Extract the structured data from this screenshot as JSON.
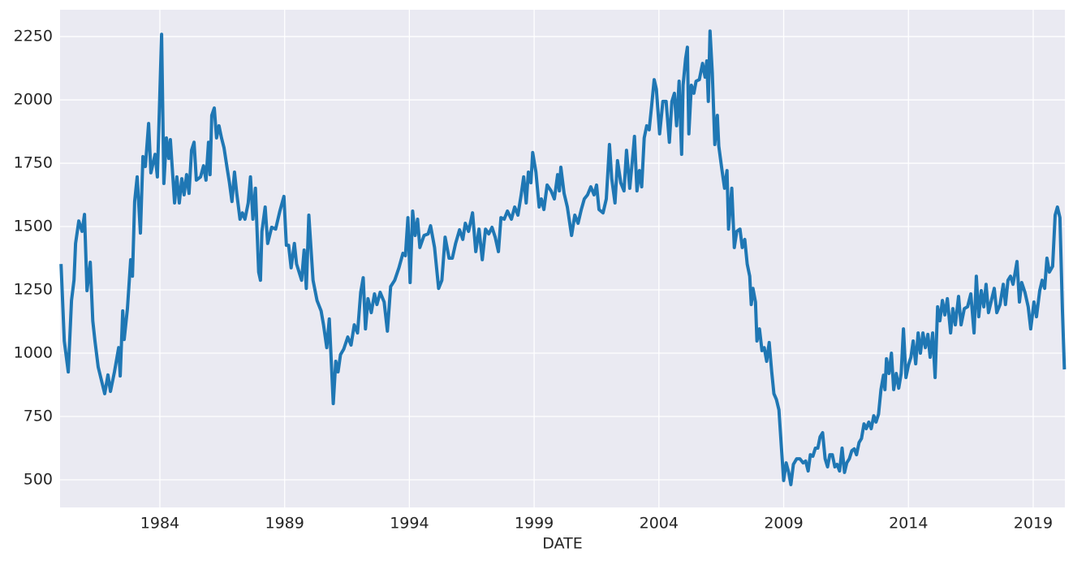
{
  "chart_data": {
    "type": "line",
    "xlabel": "DATE",
    "color": "#1f77b4",
    "grid": true,
    "xlim": [
      1980.0,
      2020.27
    ],
    "xticks": [
      1984,
      1989,
      1994,
      1999,
      2004,
      2009,
      2014,
      2019
    ],
    "ylim": [
      391,
      2356
    ],
    "yticks": [
      500,
      750,
      1000,
      1250,
      1500,
      1750,
      2000,
      2250
    ],
    "x": [
      1980.04,
      1980.17,
      1980.33,
      1980.46,
      1980.56,
      1980.62,
      1980.75,
      1980.88,
      1980.98,
      1981.08,
      1981.21,
      1981.31,
      1981.4,
      1981.53,
      1981.79,
      1981.92,
      1982.02,
      1982.18,
      1982.35,
      1982.41,
      1982.51,
      1982.57,
      1982.7,
      1982.83,
      1982.9,
      1982.99,
      1983.09,
      1983.22,
      1983.32,
      1983.42,
      1983.55,
      1983.64,
      1983.81,
      1983.9,
      1984.07,
      1984.16,
      1984.26,
      1984.36,
      1984.42,
      1984.59,
      1984.68,
      1984.78,
      1984.88,
      1984.97,
      1985.07,
      1985.17,
      1985.27,
      1985.37,
      1985.46,
      1985.63,
      1985.75,
      1985.85,
      1985.95,
      1986.01,
      1986.08,
      1986.18,
      1986.27,
      1986.37,
      1986.47,
      1986.57,
      1986.7,
      1986.79,
      1986.89,
      1986.99,
      1987.08,
      1987.21,
      1987.31,
      1987.41,
      1987.54,
      1987.63,
      1987.73,
      1987.83,
      1987.96,
      1988.03,
      1988.09,
      1988.22,
      1988.32,
      1988.48,
      1988.64,
      1988.81,
      1988.97,
      1989.07,
      1989.16,
      1989.26,
      1989.39,
      1989.48,
      1989.68,
      1989.78,
      1989.87,
      1989.97,
      1990.14,
      1990.3,
      1990.46,
      1990.56,
      1990.69,
      1990.79,
      1990.95,
      1991.05,
      1991.14,
      1991.24,
      1991.37,
      1991.53,
      1991.66,
      1991.79,
      1991.92,
      1992.05,
      1992.15,
      1992.24,
      1992.34,
      1992.47,
      1992.6,
      1992.7,
      1992.83,
      1992.99,
      1993.12,
      1993.25,
      1993.41,
      1993.58,
      1993.74,
      1993.84,
      1993.94,
      1994.03,
      1994.13,
      1994.23,
      1994.33,
      1994.42,
      1994.59,
      1994.75,
      1994.85,
      1995.01,
      1995.17,
      1995.3,
      1995.43,
      1995.59,
      1995.72,
      1995.85,
      1996.01,
      1996.14,
      1996.24,
      1996.37,
      1996.53,
      1996.66,
      1996.79,
      1996.92,
      1997.05,
      1997.18,
      1997.31,
      1997.44,
      1997.57,
      1997.67,
      1997.8,
      1997.93,
      1998.09,
      1998.22,
      1998.35,
      1998.48,
      1998.58,
      1998.68,
      1998.77,
      1998.87,
      1998.94,
      1999.07,
      1999.2,
      1999.29,
      1999.39,
      1999.52,
      1999.68,
      1999.81,
      1999.94,
      2000.01,
      2000.07,
      2000.2,
      2000.33,
      2000.5,
      2000.63,
      2000.76,
      2000.89,
      2001.01,
      2001.14,
      2001.27,
      2001.4,
      2001.5,
      2001.6,
      2001.76,
      2001.89,
      2002.02,
      2002.11,
      2002.24,
      2002.34,
      2002.47,
      2002.6,
      2002.7,
      2002.83,
      2002.96,
      2003.02,
      2003.12,
      2003.22,
      2003.31,
      2003.41,
      2003.51,
      2003.61,
      2003.71,
      2003.81,
      2003.9,
      2004.03,
      2004.16,
      2004.29,
      2004.42,
      2004.52,
      2004.62,
      2004.71,
      2004.81,
      2004.91,
      2004.97,
      2005.07,
      2005.14,
      2005.2,
      2005.3,
      2005.4,
      2005.49,
      2005.62,
      2005.75,
      2005.85,
      2005.92,
      2005.98,
      2006.05,
      2006.14,
      2006.24,
      2006.34,
      2006.4,
      2006.53,
      2006.63,
      2006.73,
      2006.79,
      2006.92,
      2007.02,
      2007.12,
      2007.25,
      2007.34,
      2007.44,
      2007.54,
      2007.64,
      2007.7,
      2007.77,
      2007.87,
      2007.93,
      2008.03,
      2008.13,
      2008.22,
      2008.32,
      2008.42,
      2008.52,
      2008.61,
      2008.71,
      2008.81,
      2008.91,
      2009.0,
      2009.1,
      2009.2,
      2009.29,
      2009.39,
      2009.52,
      2009.65,
      2009.78,
      2009.88,
      2009.98,
      2010.07,
      2010.17,
      2010.27,
      2010.37,
      2010.46,
      2010.56,
      2010.66,
      2010.76,
      2010.85,
      2010.95,
      2011.05,
      2011.14,
      2011.24,
      2011.34,
      2011.44,
      2011.53,
      2011.63,
      2011.73,
      2011.83,
      2011.92,
      2012.02,
      2012.12,
      2012.22,
      2012.31,
      2012.41,
      2012.51,
      2012.61,
      2012.7,
      2012.8,
      2012.9,
      2013.0,
      2013.06,
      2013.12,
      2013.22,
      2013.32,
      2013.41,
      2013.51,
      2013.61,
      2013.71,
      2013.8,
      2013.9,
      2014.0,
      2014.1,
      2014.19,
      2014.29,
      2014.39,
      2014.48,
      2014.58,
      2014.68,
      2014.78,
      2014.87,
      2014.97,
      2015.07,
      2015.17,
      2015.26,
      2015.36,
      2015.46,
      2015.56,
      2015.69,
      2015.78,
      2015.88,
      2016.01,
      2016.11,
      2016.24,
      2016.37,
      2016.5,
      2016.63,
      2016.72,
      2016.82,
      2016.92,
      2017.02,
      2017.11,
      2017.21,
      2017.31,
      2017.44,
      2017.54,
      2017.67,
      2017.8,
      2017.89,
      2017.99,
      2018.09,
      2018.19,
      2018.28,
      2018.35,
      2018.45,
      2018.54,
      2018.67,
      2018.8,
      2018.9,
      2019.03,
      2019.13,
      2019.26,
      2019.36,
      2019.46,
      2019.55,
      2019.65,
      2019.78,
      2019.88,
      2019.97,
      2020.07,
      2020.17,
      2020.25
    ],
    "values": [
      1352,
      1048,
      926,
      1208,
      1289,
      1433,
      1522,
      1481,
      1548,
      1247,
      1359,
      1128,
      1048,
      945,
      840,
      914,
      849,
      926,
      1022,
      910,
      1167,
      1054,
      1176,
      1369,
      1304,
      1599,
      1696,
      1474,
      1776,
      1737,
      1907,
      1712,
      1785,
      1696,
      2259,
      1670,
      1850,
      1769,
      1843,
      1593,
      1696,
      1593,
      1689,
      1625,
      1705,
      1631,
      1801,
      1833,
      1683,
      1696,
      1740,
      1683,
      1833,
      1705,
      1939,
      1968,
      1850,
      1898,
      1850,
      1811,
      1727,
      1673,
      1599,
      1715,
      1631,
      1529,
      1554,
      1529,
      1593,
      1696,
      1529,
      1651,
      1320,
      1288,
      1481,
      1577,
      1433,
      1497,
      1490,
      1561,
      1619,
      1426,
      1426,
      1337,
      1433,
      1352,
      1288,
      1407,
      1256,
      1545,
      1288,
      1208,
      1167,
      1112,
      1022,
      1135,
      801,
      968,
      926,
      994,
      1016,
      1064,
      1032,
      1112,
      1080,
      1240,
      1298,
      1096,
      1215,
      1160,
      1234,
      1192,
      1240,
      1202,
      1087,
      1263,
      1288,
      1337,
      1394,
      1385,
      1535,
      1279,
      1561,
      1465,
      1529,
      1417,
      1465,
      1471,
      1503,
      1417,
      1256,
      1288,
      1458,
      1375,
      1375,
      1433,
      1487,
      1449,
      1513,
      1481,
      1554,
      1401,
      1490,
      1369,
      1490,
      1471,
      1497,
      1458,
      1401,
      1535,
      1529,
      1561,
      1529,
      1577,
      1545,
      1625,
      1696,
      1593,
      1715,
      1673,
      1792,
      1715,
      1577,
      1609,
      1567,
      1664,
      1641,
      1609,
      1705,
      1641,
      1734,
      1631,
      1577,
      1465,
      1545,
      1513,
      1567,
      1609,
      1625,
      1657,
      1625,
      1664,
      1567,
      1554,
      1609,
      1824,
      1689,
      1593,
      1760,
      1673,
      1641,
      1801,
      1651,
      1785,
      1856,
      1641,
      1721,
      1657,
      1850,
      1898,
      1882,
      1978,
      2080,
      2042,
      1866,
      1994,
      1994,
      1833,
      1994,
      2026,
      1898,
      2074,
      1785,
      2058,
      2163,
      2208,
      1866,
      2058,
      2026,
      2074,
      2080,
      2144,
      2090,
      2154,
      1994,
      2272,
      2106,
      1824,
      1939,
      1817,
      1721,
      1651,
      1721,
      1490,
      1651,
      1417,
      1481,
      1490,
      1417,
      1449,
      1352,
      1304,
      1192,
      1256,
      1202,
      1048,
      1096,
      1010,
      1022,
      968,
      1042,
      926,
      840,
      817,
      776,
      625,
      497,
      567,
      529,
      481,
      561,
      583,
      583,
      567,
      574,
      535,
      599,
      593,
      625,
      625,
      670,
      686,
      583,
      551,
      599,
      599,
      551,
      561,
      535,
      625,
      529,
      567,
      583,
      615,
      622,
      599,
      647,
      663,
      721,
      702,
      728,
      702,
      753,
      728,
      759,
      856,
      913,
      856,
      978,
      920,
      1000,
      856,
      920,
      862,
      920,
      1096,
      904,
      952,
      984,
      1048,
      958,
      1080,
      1000,
      1080,
      1022,
      1074,
      984,
      1080,
      904,
      1183,
      1128,
      1208,
      1151,
      1215,
      1080,
      1176,
      1112,
      1224,
      1112,
      1176,
      1183,
      1234,
      1080,
      1304,
      1144,
      1247,
      1183,
      1272,
      1160,
      1202,
      1256,
      1160,
      1192,
      1272,
      1192,
      1288,
      1304,
      1272,
      1320,
      1362,
      1202,
      1279,
      1240,
      1183,
      1096,
      1202,
      1144,
      1247,
      1288,
      1256,
      1375,
      1320,
      1343,
      1545,
      1577,
      1535,
      1176,
      936
    ]
  }
}
